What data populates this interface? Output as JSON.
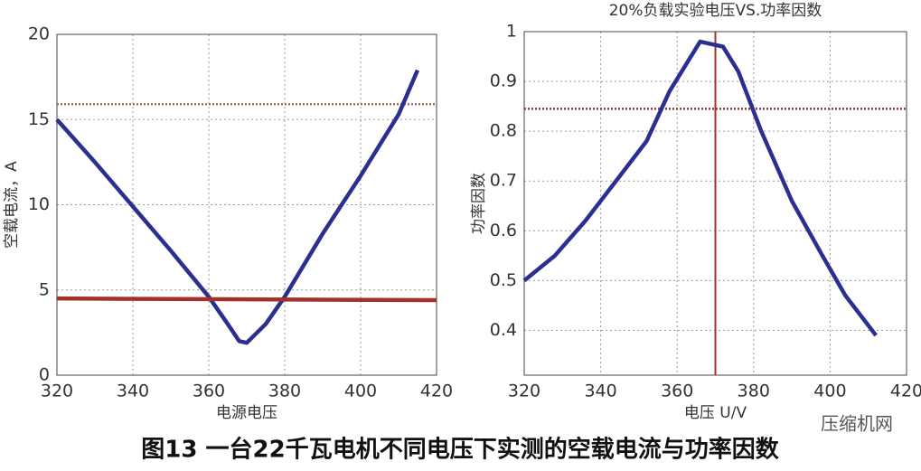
{
  "chart_data": [
    {
      "type": "line",
      "xlabel": "电源电压",
      "ylabel": "空载电流，A",
      "xlim": [
        320,
        420
      ],
      "xticks": [
        320,
        340,
        360,
        380,
        400,
        420
      ],
      "ylim": [
        0,
        20
      ],
      "yticks": [
        0,
        5,
        10,
        15,
        20
      ],
      "grid": true,
      "series": [
        {
          "color": "#2b2f8f",
          "x": [
            320,
            330,
            340,
            350,
            360,
            365,
            368,
            370,
            375,
            380,
            390,
            400,
            410,
            415
          ],
          "values": [
            15,
            12.5,
            9.9,
            7.3,
            4.6,
            3.0,
            2.0,
            1.9,
            3.0,
            4.6,
            8.3,
            11.7,
            15.3,
            17.9
          ]
        },
        {
          "color": "#a3302a",
          "x": [
            320,
            420
          ],
          "values": [
            4.5,
            4.4
          ]
        }
      ],
      "hlines": [
        {
          "value": 15.9,
          "color": "#a0705a",
          "style": "dotted"
        }
      ]
    },
    {
      "type": "line",
      "title": "20%负载实验电压VS.功率因数",
      "xlabel": "电压 U/V",
      "ylabel": "功率因数",
      "xlim": [
        320,
        420
      ],
      "xticks": [
        320,
        340,
        360,
        380,
        400,
        420
      ],
      "ylim": [
        0.31,
        1
      ],
      "yticks": [
        0.4,
        0.5,
        0.6,
        0.7,
        0.8,
        0.9,
        1
      ],
      "grid": true,
      "series": [
        {
          "color": "#2b2f8f",
          "x": [
            320,
            328,
            336,
            344,
            352,
            358,
            362,
            366,
            372,
            376,
            382,
            390,
            398,
            404,
            412
          ],
          "values": [
            0.5,
            0.55,
            0.62,
            0.7,
            0.78,
            0.88,
            0.93,
            0.98,
            0.97,
            0.92,
            0.8,
            0.66,
            0.55,
            0.47,
            0.39
          ]
        }
      ],
      "hlines": [
        {
          "value": 0.845,
          "color": "#8b3a3a",
          "style": "dotted"
        }
      ],
      "vlines": [
        {
          "value": 370,
          "color": "#a3302a",
          "style": "solid"
        }
      ]
    }
  ],
  "caption": "图13 一台22千瓦电机不同电压下实测的空载电流与功率因数",
  "watermark": "压缩机网"
}
